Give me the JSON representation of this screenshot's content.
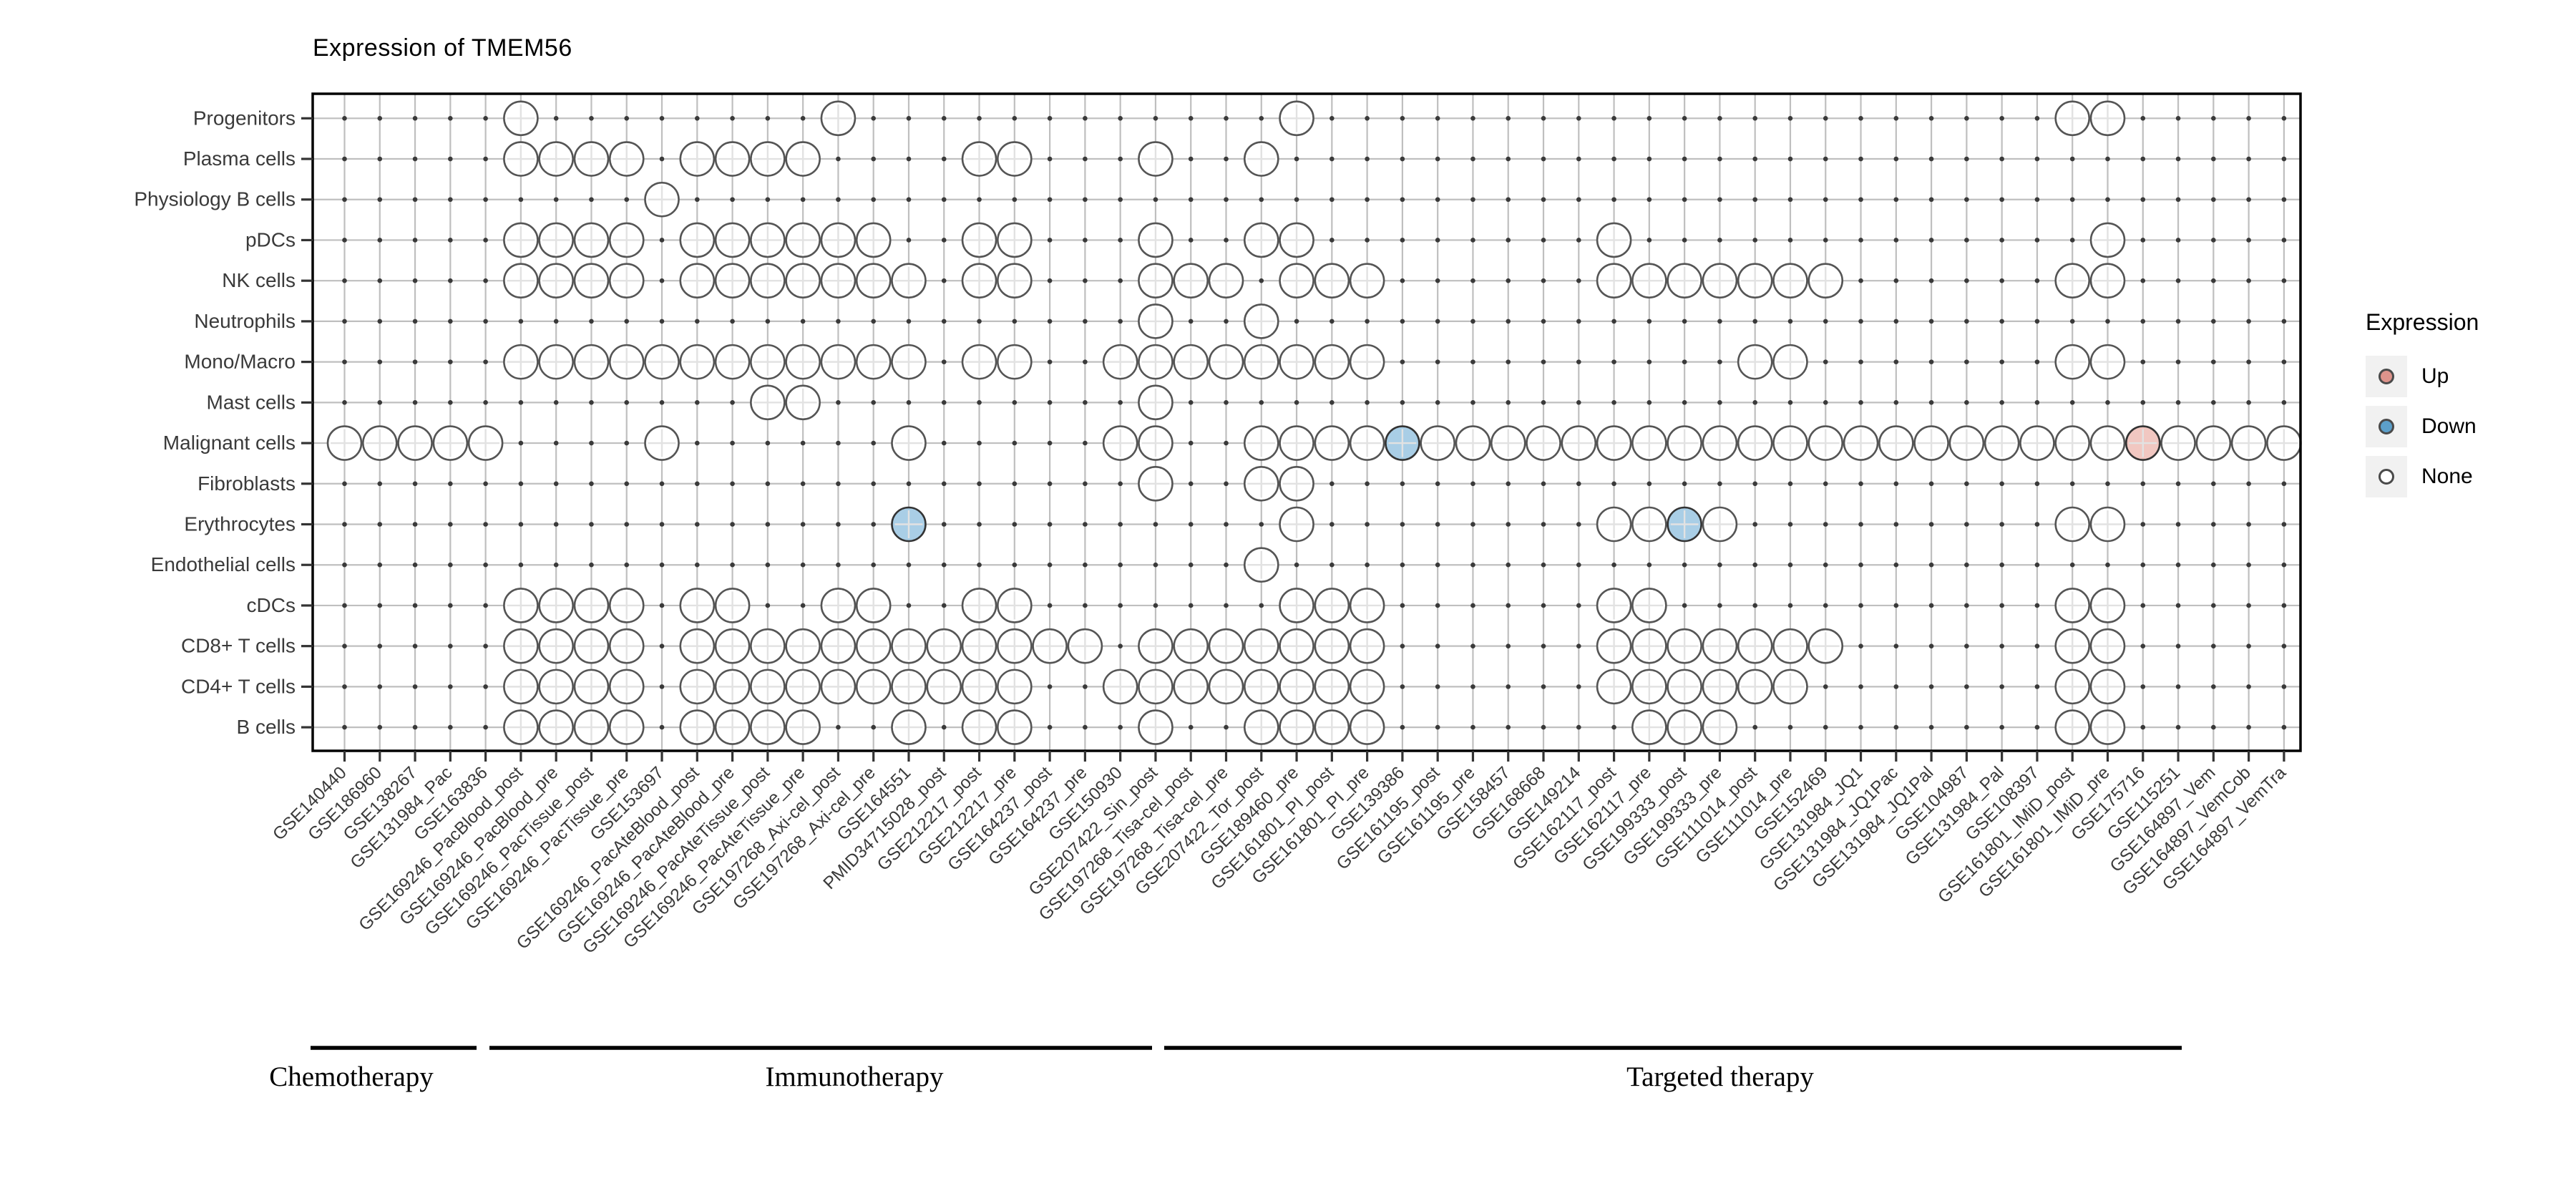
{
  "title": "Expression of TMEM56",
  "legend": {
    "title": "Expression",
    "items": [
      {
        "label": "Up",
        "color": "#DD938B"
      },
      {
        "label": "Down",
        "color": "#5C9FCA"
      },
      {
        "label": "None",
        "color": "#FFFFFF"
      }
    ]
  },
  "colors": {
    "none_fill": "#FFFFFF",
    "down_fill": "#A9CEE6",
    "up_fill": "#F1C7C1",
    "none_stroke": "#555555",
    "state_stroke": "#333333",
    "grid_line": "#BFBFBF",
    "inner_cross": "#E2E2E2",
    "intersection_dot": "#3A3A3A",
    "axis_text": "#3A3A3A",
    "tick": "#333333",
    "border": "#000000"
  },
  "chart_data": {
    "type": "heatmap",
    "subtype": "dot-matrix",
    "title": "Expression of TMEM56",
    "legend_position": "right",
    "grid": true,
    "rows": [
      "Progenitors",
      "Plasma cells",
      "Physiology B cells",
      "pDCs",
      "NK cells",
      "Neutrophils",
      "Mono/Macro",
      "Mast cells",
      "Malignant cells",
      "Fibroblasts",
      "Erythrocytes",
      "Endothelial cells",
      "cDCs",
      "CD8+ T cells",
      "CD4+ T cells",
      "B cells"
    ],
    "columns": [
      "GSE140440",
      "GSE186960",
      "GSE138267",
      "GSE131984_Pac",
      "GSE163836",
      "GSE169246_PacBlood_post",
      "GSE169246_PacBlood_pre",
      "GSE169246_PacTissue_post",
      "GSE169246_PacTissue_pre",
      "GSE153697",
      "GSE169246_PacAteBlood_post",
      "GSE169246_PacAteBlood_pre",
      "GSE169246_PacAteTissue_post",
      "GSE169246_PacAteTissue_pre",
      "GSE197268_Axi-cel_post",
      "GSE197268_Axi-cel_pre",
      "GSE164551",
      "PMID34715028_post",
      "GSE212217_post",
      "GSE212217_pre",
      "GSE164237_post",
      "GSE164237_pre",
      "GSE150930",
      "GSE207422_Sin_post",
      "GSE197268_Tisa-cel_post",
      "GSE197268_Tisa-cel_pre",
      "GSE207422_Tor_post",
      "GSE189460_pre",
      "GSE161801_PI_post",
      "GSE161801_PI_pre",
      "GSE139386",
      "GSE161195_post",
      "GSE161195_pre",
      "GSE158457",
      "GSE168668",
      "GSE149214",
      "GSE162117_post",
      "GSE162117_pre",
      "GSE199333_post",
      "GSE199333_pre",
      "GSE111014_post",
      "GSE111014_pre",
      "GSE152469",
      "GSE131984_JQ1",
      "GSE131984_JQ1Pac",
      "GSE131984_JQ1Pal",
      "GSE104987",
      "GSE131984_Pal",
      "GSE108397",
      "GSE161801_IMiD_post",
      "GSE161801_IMiD_pre",
      "GSE175716",
      "GSE115251",
      "GSE164897_Vem",
      "GSE164897_VemCob",
      "GSE164897_VemTra"
    ],
    "groups": [
      {
        "label": "Chemotherapy",
        "columns": [
          1,
          4
        ]
      },
      {
        "label": "Immunotherapy",
        "columns": [
          5,
          24
        ]
      },
      {
        "label": "Targeted therapy",
        "columns": [
          25,
          53
        ]
      }
    ],
    "states": [
      "None",
      "Down",
      "Up"
    ],
    "matrix": {
      "Progenitors": {
        "none": [
          6,
          15,
          28,
          50,
          51
        ],
        "down": [],
        "up": []
      },
      "Plasma cells": {
        "none": [
          6,
          7,
          8,
          9,
          11,
          12,
          13,
          14,
          19,
          20,
          24,
          27
        ],
        "down": [],
        "up": []
      },
      "Physiology B cells": {
        "none": [
          10
        ],
        "down": [],
        "up": []
      },
      "pDCs": {
        "none": [
          6,
          7,
          8,
          9,
          11,
          12,
          13,
          14,
          15,
          16,
          19,
          20,
          24,
          27,
          28,
          37,
          51
        ],
        "down": [],
        "up": []
      },
      "NK cells": {
        "none": [
          6,
          7,
          8,
          9,
          11,
          12,
          13,
          14,
          15,
          16,
          17,
          19,
          20,
          24,
          25,
          26,
          28,
          29,
          30,
          37,
          38,
          39,
          40,
          41,
          42,
          43,
          50,
          51
        ],
        "down": [],
        "up": []
      },
      "Neutrophils": {
        "none": [
          24,
          27
        ],
        "down": [],
        "up": []
      },
      "Mono/Macro": {
        "none": [
          6,
          7,
          8,
          9,
          10,
          11,
          12,
          13,
          14,
          15,
          16,
          17,
          19,
          20,
          23,
          24,
          25,
          26,
          27,
          28,
          29,
          30,
          41,
          42,
          50,
          51
        ],
        "down": [],
        "up": []
      },
      "Mast cells": {
        "none": [
          13,
          14,
          24
        ],
        "down": [],
        "up": []
      },
      "Malignant cells": {
        "none": [
          1,
          2,
          3,
          4,
          5,
          10,
          17,
          23,
          24,
          27,
          28,
          29,
          30,
          32,
          33,
          34,
          35,
          36,
          37,
          38,
          39,
          40,
          41,
          42,
          43,
          44,
          45,
          46,
          47,
          48,
          49,
          50,
          51,
          53,
          54,
          55,
          56
        ],
        "down": [
          31
        ],
        "up": [
          52
        ]
      },
      "Fibroblasts": {
        "none": [
          24,
          27,
          28
        ],
        "down": [],
        "up": []
      },
      "Erythrocytes": {
        "none": [
          28,
          37,
          38,
          40,
          50,
          51
        ],
        "down": [
          17,
          39
        ],
        "up": []
      },
      "Endothelial cells": {
        "none": [
          27
        ],
        "down": [],
        "up": []
      },
      "cDCs": {
        "none": [
          6,
          7,
          8,
          9,
          11,
          12,
          15,
          16,
          19,
          20,
          28,
          29,
          30,
          37,
          38,
          50,
          51
        ],
        "down": [],
        "up": []
      },
      "CD8+ T cells": {
        "none": [
          6,
          7,
          8,
          9,
          11,
          12,
          13,
          14,
          15,
          16,
          17,
          18,
          19,
          20,
          21,
          22,
          24,
          25,
          26,
          27,
          28,
          29,
          30,
          37,
          38,
          39,
          40,
          41,
          42,
          43,
          50,
          51
        ],
        "down": [],
        "up": []
      },
      "CD4+ T cells": {
        "none": [
          6,
          7,
          8,
          9,
          11,
          12,
          13,
          14,
          15,
          16,
          17,
          18,
          19,
          20,
          23,
          24,
          25,
          26,
          27,
          28,
          29,
          30,
          37,
          38,
          39,
          40,
          41,
          42,
          50,
          51
        ],
        "down": [],
        "up": []
      },
      "B cells": {
        "none": [
          6,
          7,
          8,
          9,
          11,
          12,
          13,
          14,
          17,
          19,
          20,
          24,
          27,
          28,
          29,
          30,
          38,
          39,
          40,
          50,
          51
        ],
        "down": [],
        "up": []
      }
    }
  }
}
